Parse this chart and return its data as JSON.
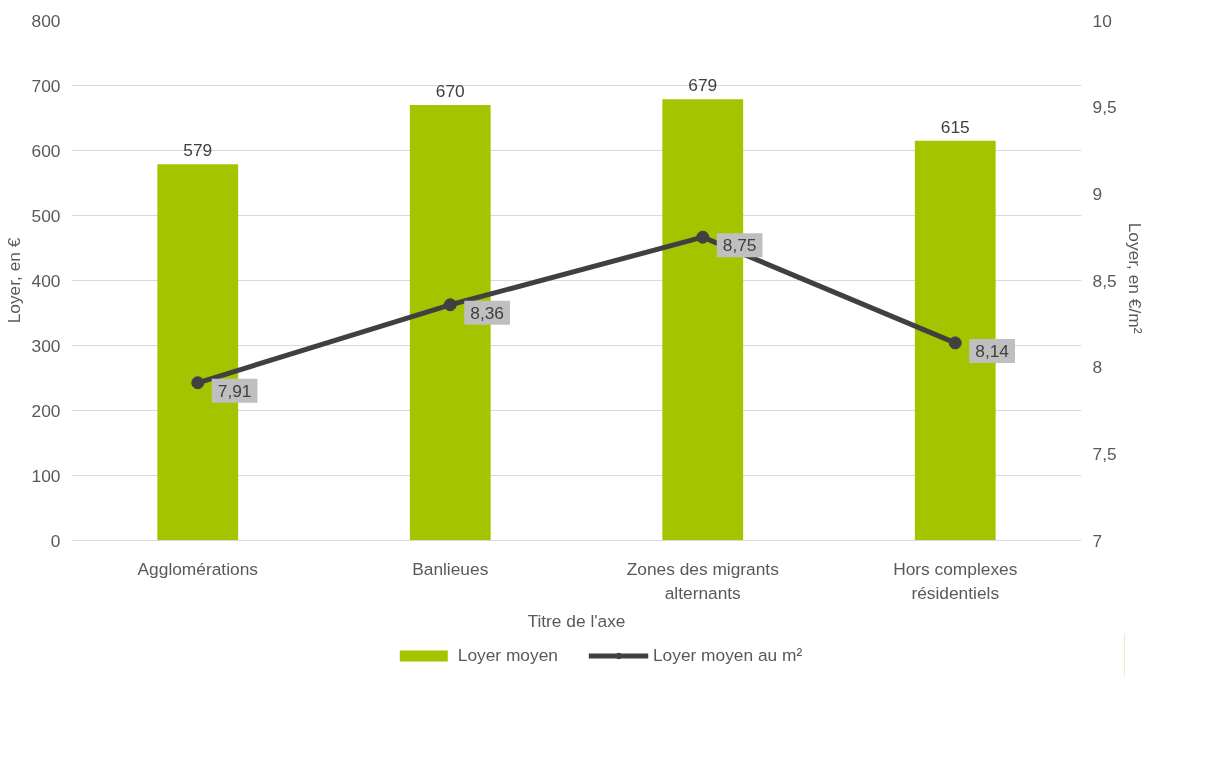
{
  "chart_data": {
    "type": "bar",
    "xlabel": "Titre de l'axe",
    "ylabel": "Loyer, en €",
    "y2label": "Loyer,  en €/m²",
    "categories": [
      "Agglomérations",
      "Banlieues",
      "Zones des migrants alternants",
      "Hors complexes résidentiels"
    ],
    "series": [
      {
        "name": "Loyer moyen",
        "color": "#a5c400",
        "values": [
          579,
          670,
          679,
          615
        ],
        "data_labels": true
      },
      {
        "name": "Loyer moyen au m²",
        "type": "line",
        "axis": "y2",
        "color": "#404040",
        "marker": "circle",
        "line_style": "solid",
        "values": [
          7.91,
          8.36,
          8.75,
          8.14
        ],
        "value_labels": [
          "7,91",
          "8,36",
          "8,75",
          "8,14"
        ]
      }
    ],
    "ylim": [
      0,
      800
    ],
    "yticks": [
      0,
      100,
      200,
      300,
      400,
      500,
      600,
      700,
      800
    ],
    "y2lim": [
      7,
      10
    ],
    "y2ticks": [
      7,
      {
        "value": 7.5,
        "label": "7,5"
      },
      8,
      {
        "value": 8.5,
        "label": "8,5"
      },
      9,
      {
        "value": 9.5,
        "label": "9,5"
      },
      10
    ],
    "grid": "y",
    "legend": "bottom"
  }
}
